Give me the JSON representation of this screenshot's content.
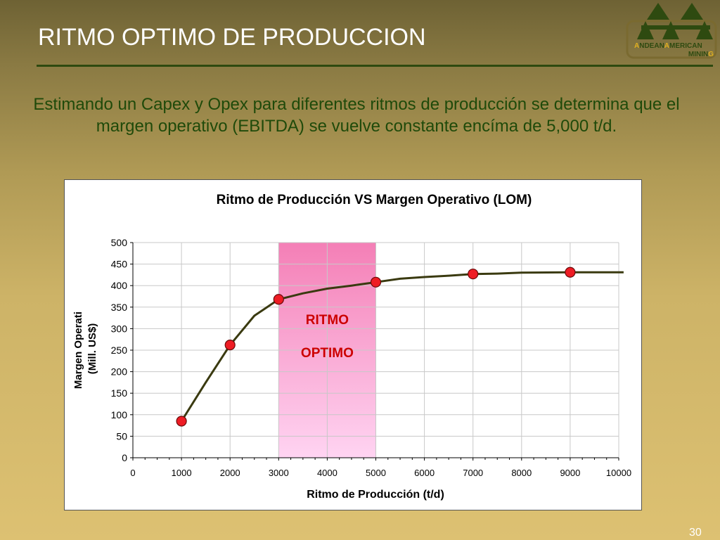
{
  "slide": {
    "title": "RITMO OPTIMO DE PRODUCCION",
    "subtitle": "Estimando un Capex y Opex para diferentes ritmos de producción se determina que el margen operativo (EBITDA) se vuelve constante encíma de 5,000 t/d.",
    "page_number": "30"
  },
  "logo": {
    "word1_initial": "A",
    "word1_rest": "NDEAN",
    "word2_initial": "A",
    "word2_rest": "MERICAN",
    "word3": "MININ",
    "word3_last": "G",
    "colors": {
      "green": "#2e4a10",
      "gold": "#e0b020",
      "frame": "#7a6a30"
    }
  },
  "chart_data": {
    "type": "line",
    "title": "Ritmo de Producción  VS  Margen Operativo (LOM)",
    "xlabel": "Ritmo de Producción (t/d)",
    "ylabel_line1": "Margen Operati",
    "ylabel_line2": "(Mill. US$)",
    "xlim": [
      0,
      10000
    ],
    "ylim": [
      0,
      500
    ],
    "x_ticks": [
      0,
      1000,
      2000,
      3000,
      4000,
      5000,
      6000,
      7000,
      8000,
      9000,
      10000
    ],
    "y_ticks": [
      0,
      50,
      100,
      150,
      200,
      250,
      300,
      350,
      400,
      450,
      500
    ],
    "grid": true,
    "curve": [
      [
        1000,
        85
      ],
      [
        1500,
        175
      ],
      [
        2000,
        262
      ],
      [
        2500,
        330
      ],
      [
        3000,
        368
      ],
      [
        3500,
        382
      ],
      [
        4000,
        393
      ],
      [
        4500,
        400
      ],
      [
        5000,
        408
      ],
      [
        5500,
        416
      ],
      [
        6000,
        420
      ],
      [
        6500,
        423
      ],
      [
        7000,
        427
      ],
      [
        7500,
        428
      ],
      [
        8000,
        430
      ],
      [
        9000,
        431
      ],
      [
        10100,
        431
      ]
    ],
    "markers": [
      [
        1000,
        85
      ],
      [
        2000,
        262
      ],
      [
        3000,
        368
      ],
      [
        5000,
        408
      ],
      [
        7000,
        427
      ],
      [
        9000,
        431
      ]
    ],
    "highlight": {
      "from": 3000,
      "to": 5000,
      "label_line1": "RITMO",
      "label_line2": "OPTIMO"
    },
    "colors": {
      "line": "#3a3a10",
      "marker_fill": "#ee1c24",
      "marker_stroke": "#6a0a0a",
      "highlight_top": "#f47fb6",
      "highlight_bottom": "#ffd4f2",
      "highlight_text": "#cc0000",
      "grid": "#c8c8c8"
    }
  }
}
